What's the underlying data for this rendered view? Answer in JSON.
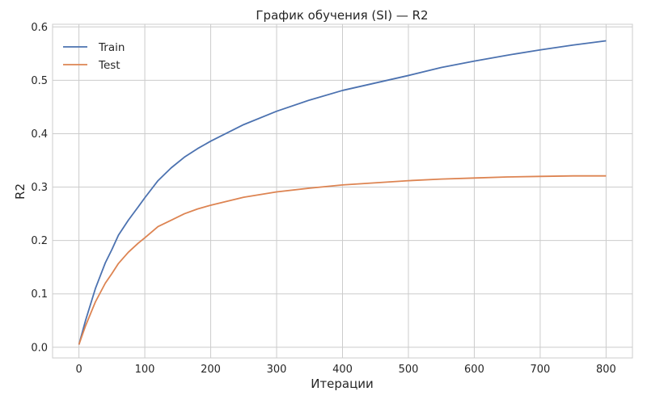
{
  "chart_data": {
    "type": "line",
    "title": "График обучения (SI) — R2",
    "xlabel": "Итерации",
    "ylabel": "R2",
    "xlim": [
      -40,
      840
    ],
    "ylim": [
      -0.02,
      0.605
    ],
    "xticks": [
      0,
      100,
      200,
      300,
      400,
      500,
      600,
      700,
      800
    ],
    "yticks": [
      0.0,
      0.1,
      0.2,
      0.3,
      0.4,
      0.5,
      0.6
    ],
    "ytick_labels": [
      "0.0",
      "0.1",
      "0.2",
      "0.3",
      "0.4",
      "0.5",
      "0.6"
    ],
    "grid": true,
    "legend_position": "top-left",
    "x": [
      0,
      10,
      25,
      40,
      50,
      60,
      75,
      90,
      100,
      120,
      140,
      160,
      180,
      200,
      250,
      300,
      350,
      400,
      450,
      500,
      550,
      600,
      650,
      700,
      750,
      800
    ],
    "series": [
      {
        "name": "Train",
        "color": "#4c72b0",
        "values": [
          0.005,
          0.05,
          0.11,
          0.158,
          0.183,
          0.21,
          0.238,
          0.263,
          0.28,
          0.312,
          0.336,
          0.356,
          0.372,
          0.386,
          0.417,
          0.442,
          0.463,
          0.481,
          0.495,
          0.509,
          0.524,
          0.536,
          0.547,
          0.557,
          0.566,
          0.574
        ]
      },
      {
        "name": "Test",
        "color": "#dd8452",
        "values": [
          0.005,
          0.04,
          0.085,
          0.12,
          0.138,
          0.157,
          0.178,
          0.195,
          0.205,
          0.226,
          0.238,
          0.25,
          0.259,
          0.266,
          0.281,
          0.291,
          0.298,
          0.304,
          0.308,
          0.312,
          0.315,
          0.317,
          0.319,
          0.32,
          0.321,
          0.321
        ]
      }
    ]
  }
}
